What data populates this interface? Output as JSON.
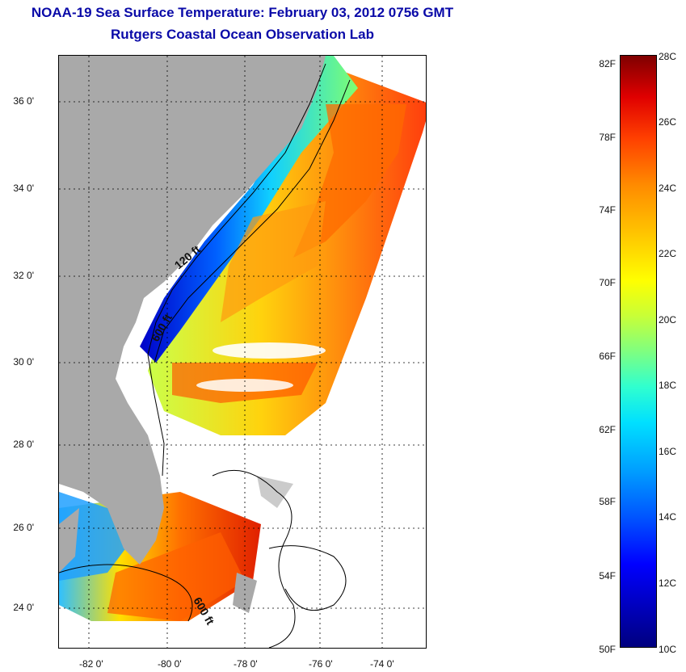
{
  "title": {
    "line1": "NOAA-19 Sea Surface Temperature:  February 03, 2012 0756 GMT",
    "line2": "Rutgers Coastal Ocean Observation Lab"
  },
  "map": {
    "lat_labels": [
      "36 0'",
      "34 0'",
      "32 0'",
      "30 0'",
      "28 0'",
      "26 0'",
      "24 0'"
    ],
    "lon_labels": [
      "-82 0'",
      "-80 0'",
      "-78 0'",
      "-76 0'",
      "-74 0'"
    ],
    "contour_labels": [
      "120 ft",
      "600 ft",
      "600 ft"
    ],
    "land_color": "#a9a9a9"
  },
  "colorbar": {
    "fahrenheit": [
      "82F",
      "78F",
      "74F",
      "70F",
      "66F",
      "62F",
      "58F",
      "54F",
      "50F"
    ],
    "celsius": [
      "28C",
      "26C",
      "24C",
      "22C",
      "20C",
      "18C",
      "16C",
      "14C",
      "12C",
      "10C"
    ]
  }
}
